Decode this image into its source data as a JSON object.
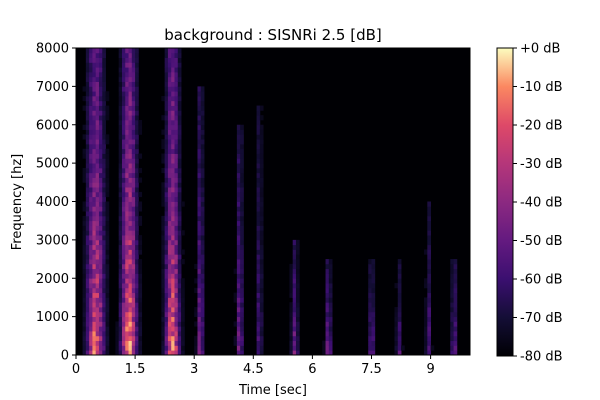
{
  "chart_data": {
    "type": "heatmap",
    "title": "background : SISNRi 2.5 [dB]",
    "xlabel": "Time [sec]",
    "ylabel": "Frequency [hz]",
    "xlim": [
      0,
      10
    ],
    "ylim": [
      0,
      8000
    ],
    "x_ticks": [
      0,
      1.5,
      3,
      4.5,
      6,
      7.5,
      9
    ],
    "x_tick_labels": [
      "0",
      "1.5",
      "3",
      "4.5",
      "6",
      "7.5",
      "9"
    ],
    "y_ticks": [
      0,
      1000,
      2000,
      3000,
      4000,
      5000,
      6000,
      7000,
      8000
    ],
    "y_tick_labels": [
      "0",
      "1000",
      "2000",
      "3000",
      "4000",
      "5000",
      "6000",
      "7000",
      "8000"
    ],
    "colorbar": {
      "colormap": "magma",
      "range_db": [
        -80,
        0
      ],
      "ticks": [
        0,
        -10,
        -20,
        -30,
        -40,
        -50,
        -60,
        -70,
        -80
      ],
      "tick_labels": [
        "+0 dB",
        "-10 dB",
        "-20 dB",
        "-30 dB",
        "-40 dB",
        "-50 dB",
        "-60 dB",
        "-70 dB",
        "-80 dB"
      ]
    },
    "grid": false,
    "events": [
      {
        "time": 0.5,
        "duration": 0.45,
        "top_freq": 8000,
        "peak_db": -18
      },
      {
        "time": 1.35,
        "duration": 0.4,
        "top_freq": 8000,
        "peak_db": -10
      },
      {
        "time": 2.45,
        "duration": 0.35,
        "top_freq": 8000,
        "peak_db": -15
      },
      {
        "time": 3.15,
        "duration": 0.12,
        "top_freq": 7000,
        "peak_db": -45
      },
      {
        "time": 4.15,
        "duration": 0.12,
        "top_freq": 6000,
        "peak_db": -45
      },
      {
        "time": 4.65,
        "duration": 0.1,
        "top_freq": 6500,
        "peak_db": -55
      },
      {
        "time": 5.55,
        "duration": 0.12,
        "top_freq": 3000,
        "peak_db": -45
      },
      {
        "time": 6.4,
        "duration": 0.12,
        "top_freq": 2500,
        "peak_db": -45
      },
      {
        "time": 7.5,
        "duration": 0.1,
        "top_freq": 2500,
        "peak_db": -50
      },
      {
        "time": 8.2,
        "duration": 0.1,
        "top_freq": 2500,
        "peak_db": -55
      },
      {
        "time": 8.95,
        "duration": 0.1,
        "top_freq": 4000,
        "peak_db": -55
      },
      {
        "time": 9.6,
        "duration": 0.12,
        "top_freq": 2500,
        "peak_db": -50
      }
    ]
  }
}
